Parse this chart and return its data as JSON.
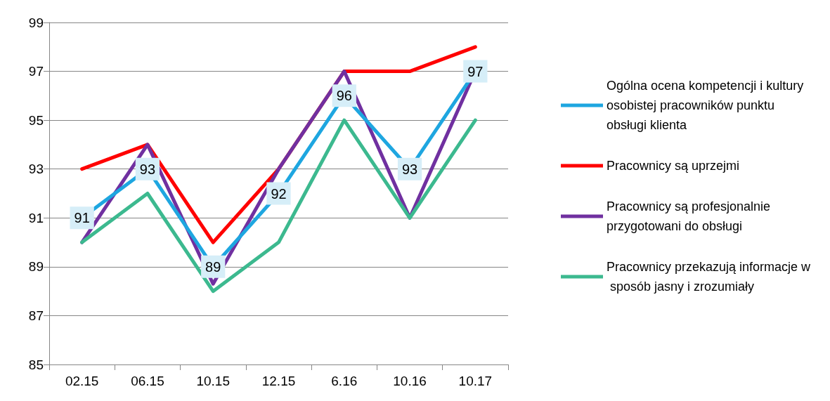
{
  "chart_data": {
    "type": "line",
    "categories": [
      "02.15",
      "06.15",
      "10.15",
      "12.15",
      "6.16",
      "10.16",
      "10.17"
    ],
    "ylim": [
      85,
      99
    ],
    "yticks": [
      85,
      87,
      89,
      91,
      93,
      95,
      97,
      99
    ],
    "grid": "y",
    "legend": "right",
    "marker": "none",
    "line_style": "solid",
    "series": [
      {
        "name": "Ogólna ocena kompetencji i kultury osobistej pracowników punktu obsługi klienta",
        "color": "#1ea6e0",
        "marker": "square",
        "values": [
          91,
          93,
          89,
          92,
          96,
          93,
          97
        ],
        "value_labels": [
          "91",
          "93",
          "89",
          "92",
          "96",
          "93",
          "97"
        ]
      },
      {
        "name": "Pracownicy są uprzejmi",
        "color": "#ff0000",
        "values": [
          93,
          94,
          90,
          93,
          97,
          97,
          98
        ]
      },
      {
        "name": "Pracownicy są profesjonalnie przygotowani do obsługi",
        "color": "#7030a0",
        "values": [
          90,
          94,
          88.3,
          93,
          97,
          91,
          97
        ]
      },
      {
        "name": "Pracownicy przekazują informacje w sposób jasny i zrozumiały",
        "color": "#3cb98f",
        "values": [
          90,
          92,
          88,
          90,
          95,
          91,
          95
        ]
      }
    ]
  }
}
